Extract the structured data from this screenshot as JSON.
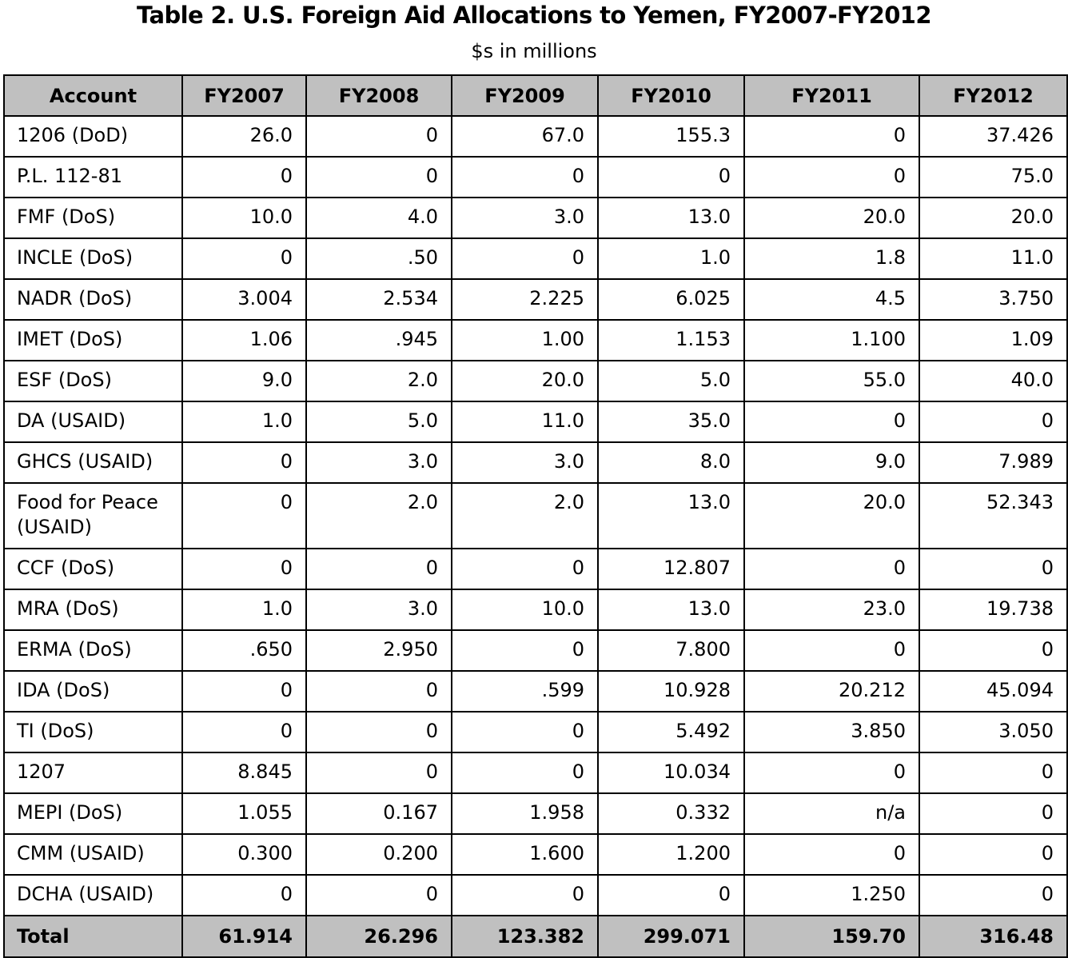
{
  "title": "Table 2. U.S. Foreign Aid Allocations to Yemen, FY2007-FY2012",
  "subtitle": "$s in millions",
  "columns": [
    "Account",
    "FY2007",
    "FY2008",
    "FY2009",
    "FY2010",
    "FY2011",
    "FY2012"
  ],
  "rows": [
    {
      "account": "1206 (DoD)",
      "values": [
        "26.0",
        "0",
        "67.0",
        "155.3",
        "0",
        "37.426"
      ]
    },
    {
      "account": "P.L. 112-81",
      "values": [
        "0",
        "0",
        "0",
        "0",
        "0",
        "75.0"
      ]
    },
    {
      "account": "FMF (DoS)",
      "values": [
        "10.0",
        "4.0",
        "3.0",
        "13.0",
        "20.0",
        "20.0"
      ]
    },
    {
      "account": "INCLE (DoS)",
      "values": [
        "0",
        ".50",
        "0",
        "1.0",
        "1.8",
        "11.0"
      ]
    },
    {
      "account": "NADR (DoS)",
      "values": [
        "3.004",
        "2.534",
        "2.225",
        "6.025",
        "4.5",
        "3.750"
      ]
    },
    {
      "account": "IMET (DoS)",
      "values": [
        "1.06",
        ".945",
        "1.00",
        "1.153",
        "1.100",
        "1.09"
      ]
    },
    {
      "account": "ESF (DoS)",
      "values": [
        "9.0",
        "2.0",
        "20.0",
        "5.0",
        "55.0",
        "40.0"
      ]
    },
    {
      "account": "DA (USAID)",
      "values": [
        "1.0",
        "5.0",
        "11.0",
        "35.0",
        "0",
        "0"
      ]
    },
    {
      "account": "GHCS (USAID)",
      "values": [
        "0",
        "3.0",
        "3.0",
        "8.0",
        "9.0",
        "7.989"
      ]
    },
    {
      "account": "Food for Peace (USAID)",
      "values": [
        "0",
        "2.0",
        "2.0",
        "13.0",
        "20.0",
        "52.343"
      ]
    },
    {
      "account": "CCF (DoS)",
      "values": [
        "0",
        "0",
        "0",
        "12.807",
        "0",
        "0"
      ]
    },
    {
      "account": "MRA (DoS)",
      "values": [
        "1.0",
        "3.0",
        "10.0",
        "13.0",
        "23.0",
        "19.738"
      ]
    },
    {
      "account": "ERMA (DoS)",
      "values": [
        ".650",
        "2.950",
        "0",
        "7.800",
        "0",
        "0"
      ]
    },
    {
      "account": "IDA (DoS)",
      "values": [
        "0",
        "0",
        ".599",
        "10.928",
        "20.212",
        "45.094"
      ]
    },
    {
      "account": "TI (DoS)",
      "values": [
        "0",
        "0",
        "0",
        "5.492",
        "3.850",
        "3.050"
      ]
    },
    {
      "account": "1207",
      "values": [
        "8.845",
        "0",
        "0",
        "10.034",
        "0",
        "0"
      ]
    },
    {
      "account": "MEPI (DoS)",
      "values": [
        "1.055",
        "0.167",
        "1.958",
        "0.332",
        "n/a",
        "0"
      ]
    },
    {
      "account": "CMM (USAID)",
      "values": [
        "0.300",
        "0.200",
        "1.600",
        "1.200",
        "0",
        "0"
      ]
    },
    {
      "account": "DCHA (USAID)",
      "values": [
        "0",
        "0",
        "0",
        "0",
        "1.250",
        "0"
      ]
    }
  ],
  "total": {
    "account": "Total",
    "values": [
      "61.914",
      "26.296",
      "123.382",
      "299.071",
      "159.70",
      "316.48"
    ]
  },
  "colors": {
    "header_bg": "#c0c0c0",
    "border": "#000000"
  }
}
